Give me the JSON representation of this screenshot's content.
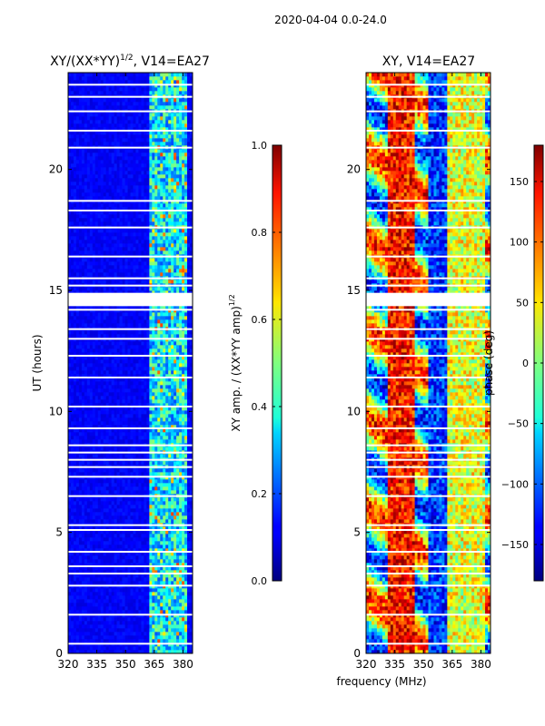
{
  "suptitle": "2020-04-04 0.0-24.0",
  "chart_data": [
    {
      "type": "heatmap",
      "title_main": "XY/(XX*YY)",
      "title_sup": "1/2",
      "title_tail": ", V14=EA27",
      "xlabel": "",
      "ylabel": "UT (hours)",
      "xlim": [
        320,
        385
      ],
      "ylim": [
        0,
        24
      ],
      "xticks": [
        320,
        335,
        350,
        365,
        380
      ],
      "yticks": [
        0,
        5,
        10,
        15,
        20
      ],
      "colorbar": {
        "label_main": "XY amp. / (XX*YY amp)",
        "label_sup": "1/2",
        "range": [
          0.0,
          1.0
        ],
        "ticks": [
          "0.0",
          "0.2",
          "0.4",
          "0.6",
          "0.8",
          "1.0"
        ],
        "tick_values": [
          0.0,
          0.2,
          0.4,
          0.6,
          0.8,
          1.0
        ]
      }
    },
    {
      "type": "heatmap",
      "title": "XY, V14=EA27",
      "xlabel": "frequency (MHz)",
      "ylabel": "",
      "xlim": [
        320,
        385
      ],
      "ylim": [
        0,
        24
      ],
      "xticks": [
        320,
        335,
        350,
        365,
        380
      ],
      "yticks": [
        0,
        5,
        10,
        15,
        20
      ],
      "colorbar": {
        "label": "phase (deg)",
        "range": [
          -180,
          180
        ],
        "ticks": [
          "−150",
          "−100",
          "−50",
          "0",
          "50",
          "100",
          "150"
        ],
        "tick_values": [
          -150,
          -100,
          -50,
          0,
          50,
          100,
          150
        ]
      }
    }
  ],
  "flagged_ut_hours": [
    0.4,
    1.6,
    2.8,
    3.3,
    3.6,
    4.2,
    5.1,
    5.3,
    6.5,
    7.3,
    7.7,
    8.0,
    8.3,
    8.6,
    9.3,
    10.2,
    11.4,
    12.3,
    13.0,
    13.4,
    14.2,
    14.6,
    15.2,
    15.5,
    16.4,
    17.6,
    18.3,
    18.7,
    20.9,
    21.6,
    22.4,
    23.0,
    23.5
  ]
}
